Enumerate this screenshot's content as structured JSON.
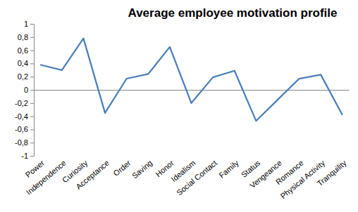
{
  "chart_data": {
    "type": "line",
    "title": "Average employee motivation profile",
    "categories": [
      "Power",
      "Independence",
      "Curiosity",
      "Acceptance",
      "Order",
      "Saving",
      "Honor",
      "Idealism",
      "Social Contact",
      "Family",
      "Status",
      "Vengeance",
      "Romance",
      "Physical Activity",
      "Tranquility"
    ],
    "values": [
      0.38,
      0.3,
      0.78,
      -0.35,
      0.17,
      0.24,
      0.65,
      -0.2,
      0.19,
      0.29,
      -0.47,
      -0.15,
      0.17,
      0.23,
      -0.38
    ],
    "color": "#4a7ebb",
    "ylim": [
      -1,
      1
    ],
    "yticks": [
      -1,
      {
        "value": -0.8,
        "label": "-0,8"
      },
      {
        "value": -0.6,
        "label": "-0,6"
      },
      {
        "value": -0.4,
        "label": "-0,4"
      },
      {
        "value": -0.2,
        "label": "-0,2"
      },
      0,
      {
        "value": 0.2,
        "label": "0,2"
      },
      {
        "value": 0.4,
        "label": "0,4"
      },
      {
        "value": 0.6,
        "label": "0,6"
      },
      {
        "value": 0.8,
        "label": "0,8"
      },
      1
    ],
    "grid": false
  }
}
